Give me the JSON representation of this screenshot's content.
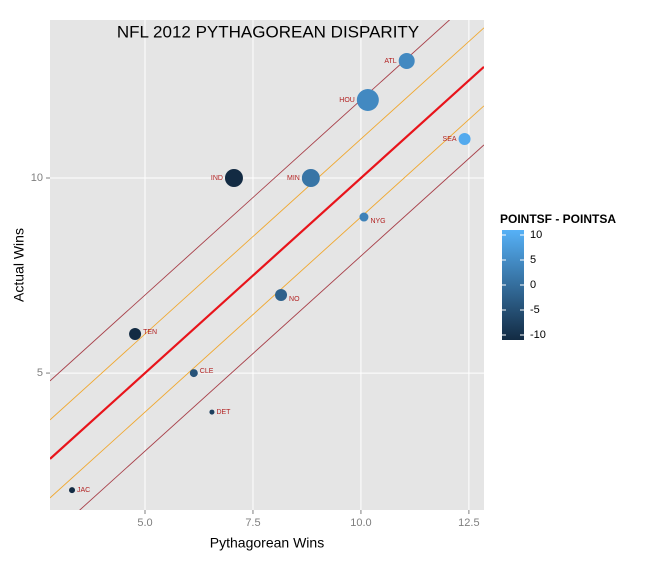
{
  "chart_data": {
    "type": "scatter",
    "title": "NFL 2012 PYTHAGOREAN DISPARITY",
    "x_label": "Pythagorean Wins",
    "y_label": "Actual Wins",
    "labels": [
      "JAC",
      "TEN",
      "CLE",
      "DET",
      "NO",
      "IND",
      "MIN",
      "NYG",
      "HOU",
      "ATL",
      "SEA"
    ],
    "x": [
      3.31,
      4.77,
      6.13,
      6.55,
      8.15,
      7.06,
      8.84,
      10.07,
      10.16,
      11.06,
      12.4
    ],
    "y": [
      2,
      6,
      5,
      4,
      7,
      10,
      10,
      9,
      12,
      13,
      11
    ],
    "sizes": [
      3,
      6,
      4,
      2.5,
      6,
      9,
      9,
      4.5,
      11,
      8,
      6
    ],
    "color_values": [
      -10,
      -10,
      -4,
      -7,
      -2,
      -10,
      1,
      3,
      4,
      4,
      9
    ],
    "color_title": "POINTSF - POINTSA",
    "color_range": [
      "#132B43",
      "#56B1F7"
    ],
    "colorlim": [
      -10,
      10
    ],
    "colorticks": [
      10,
      5,
      0,
      -5,
      -10
    ],
    "label_color": "#b22222",
    "reference_lines": [
      {
        "offset": 0,
        "color": "#e8141b"
      },
      {
        "offset": 1,
        "color": "#f0a830"
      },
      {
        "offset": -1,
        "color": "#f0a830"
      },
      {
        "offset": 2,
        "color": "#a8404a"
      },
      {
        "offset": -2,
        "color": "#a8404a"
      }
    ],
    "xlim": [
      2.8,
      12.85
    ],
    "ylim": [
      1.49,
      14.05
    ],
    "xticks": [
      {
        "value": 5,
        "label": "5.0"
      },
      {
        "value": 7.5,
        "label": "7.5"
      },
      {
        "value": 10,
        "label": "10.0"
      },
      {
        "value": 12.5,
        "label": "12.5"
      }
    ],
    "yticks": [
      5,
      10
    ],
    "grid": true
  }
}
